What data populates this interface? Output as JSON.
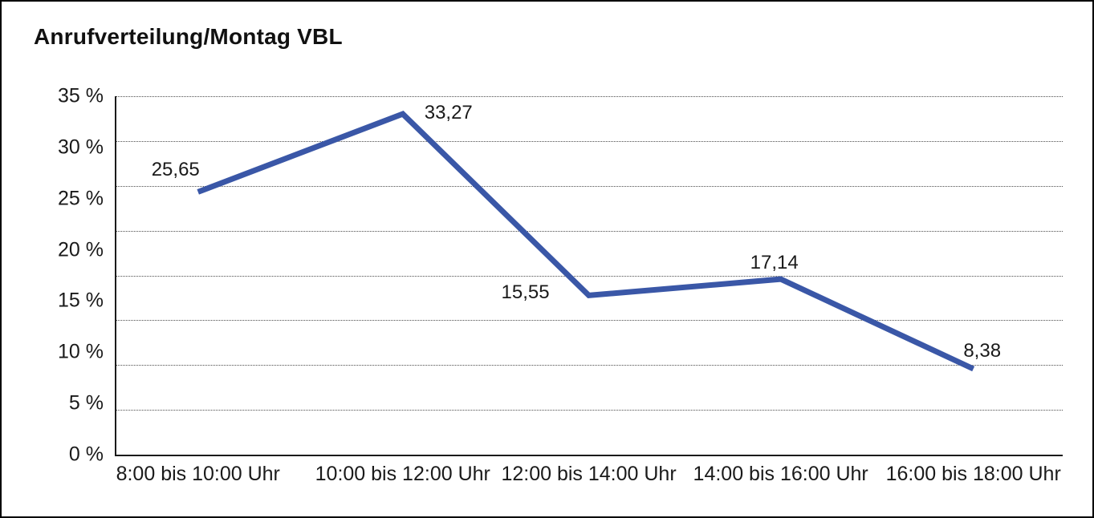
{
  "chart_data": {
    "type": "line",
    "title": "Anrufverteilung/Montag VBL",
    "categories": [
      "8:00 bis 10:00 Uhr",
      "10:00 bis 12:00 Uhr",
      "12:00 bis 14:00 Uhr",
      "14:00 bis 16:00 Uhr",
      "16:00 bis 18:00 Uhr"
    ],
    "values": [
      25.65,
      33.27,
      15.55,
      17.14,
      8.38
    ],
    "data_labels": [
      "25,65",
      "33,27",
      "15,55",
      "17,14",
      "8,38"
    ],
    "xlabel": "",
    "ylabel": "",
    "ylim": [
      0,
      35
    ],
    "ytick_step": 5,
    "ytick_labels_top_to_bottom": [
      "35 %",
      "30 %",
      "25 %",
      "20 %",
      "15 %",
      "10 %",
      "5 %",
      "0 %"
    ],
    "grid": "horizontal-dotted",
    "legend": "none",
    "line_color": "#3A57A7",
    "axis_color": "#1A1A1A",
    "grid_color": "#4D4D4D",
    "background_color": "#FFFFFF",
    "border_color": "#000000"
  }
}
